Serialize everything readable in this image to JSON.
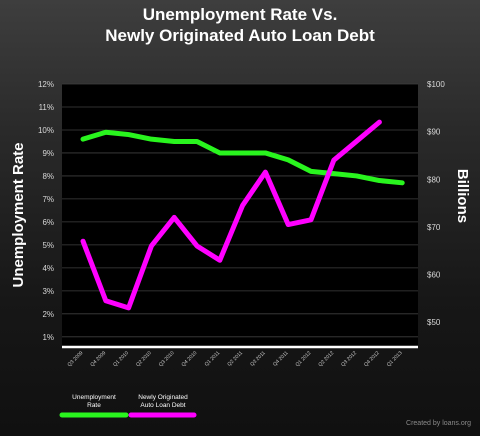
{
  "title_line1": "Unemployment Rate Vs.",
  "title_line2": "Newly Originated Auto Loan Debt",
  "credit": "Created by loans.org",
  "chart_data": {
    "type": "line",
    "title": "Unemployment Rate Vs. Newly Originated Auto Loan Debt",
    "categories": [
      "Q3 2009",
      "Q4 2009",
      "Q1 2010",
      "Q2 2010",
      "Q3 2010",
      "Q4 2010",
      "Q1 2011",
      "Q2 2011",
      "Q3 2011",
      "Q4 2011",
      "Q1 2012",
      "Q2 2012",
      "Q3 2012",
      "Q4 2012",
      "Q1 2013"
    ],
    "left_axis": {
      "label": "Unemployment Rate",
      "ticks": [
        "1%",
        "2%",
        "3%",
        "4%",
        "5%",
        "6%",
        "7%",
        "8%",
        "9%",
        "10%",
        "11%",
        "12%"
      ],
      "ylim": [
        0.6,
        12
      ]
    },
    "right_axis": {
      "label": "Billions",
      "ticks": [
        "$50",
        "$60",
        "$70",
        "$80",
        "$90",
        "$100"
      ],
      "ylim": [
        45,
        100
      ]
    },
    "series": [
      {
        "name": "Unemployment Rate",
        "axis": "left",
        "color": "#29f51e",
        "values": [
          9.6,
          9.9,
          9.8,
          9.6,
          9.5,
          9.5,
          9.0,
          9.0,
          9.0,
          8.7,
          8.2,
          8.1,
          8.0,
          7.8,
          7.7
        ]
      },
      {
        "name": "Newly Originated Auto Loan Debt",
        "axis": "right",
        "color": "#ff00ff",
        "values": [
          67,
          54.5,
          53,
          66,
          72,
          66,
          63,
          74.5,
          81.5,
          70.5,
          71.5,
          84,
          88,
          92,
          null
        ]
      }
    ],
    "legend": [
      {
        "label_line1": "Unemployment",
        "label_line2": "Rate",
        "color": "#29f51e"
      },
      {
        "label_line1": "Newly Originated",
        "label_line2": "Auto Loan Debt",
        "color": "#ff00ff"
      }
    ],
    "legend_position": "bottom-left",
    "grid": true
  }
}
